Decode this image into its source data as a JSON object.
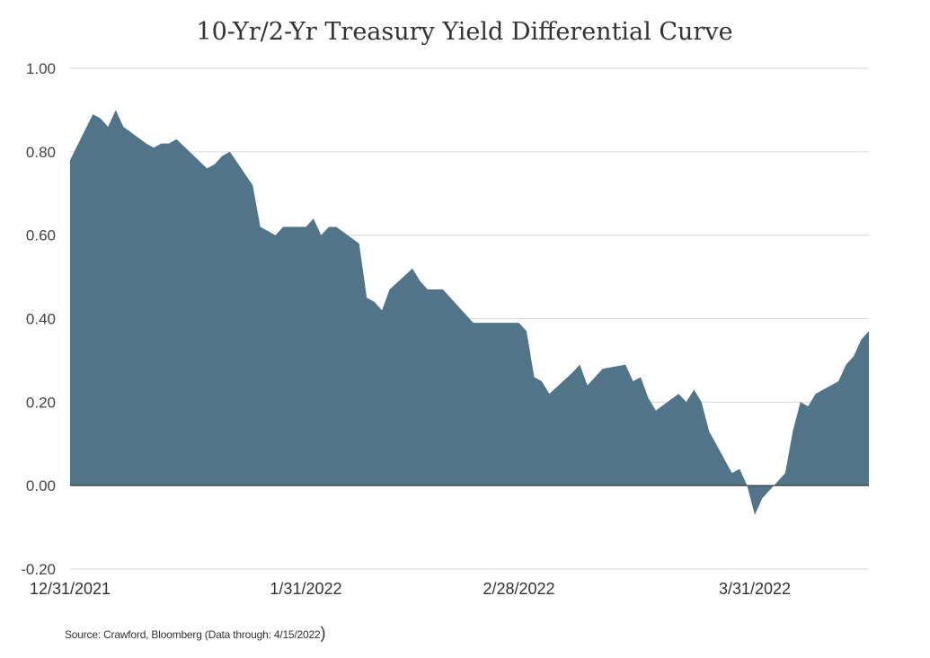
{
  "chart_data": {
    "type": "area",
    "title": "10-Yr/2-Yr Treasury Yield Differential Curve",
    "ylim": [
      -0.2,
      1.0
    ],
    "yticks": [
      "1.00",
      "0.80",
      "0.60",
      "0.40",
      "0.20",
      "0.00",
      "-0.20"
    ],
    "xticks": [
      "12/31/2021",
      "1/31/2022",
      "2/28/2022",
      "3/31/2022"
    ],
    "grid": true,
    "series_colors": {
      "positive": "#517488",
      "negative": "#ff0000"
    },
    "x": [
      "2021-12-31",
      "2022-01-03",
      "2022-01-04",
      "2022-01-05",
      "2022-01-06",
      "2022-01-07",
      "2022-01-10",
      "2022-01-11",
      "2022-01-12",
      "2022-01-13",
      "2022-01-14",
      "2022-01-18",
      "2022-01-19",
      "2022-01-20",
      "2022-01-21",
      "2022-01-24",
      "2022-01-25",
      "2022-01-26",
      "2022-01-27",
      "2022-01-28",
      "2022-01-31",
      "2022-02-01",
      "2022-02-02",
      "2022-02-03",
      "2022-02-04",
      "2022-02-07",
      "2022-02-08",
      "2022-02-09",
      "2022-02-10",
      "2022-02-11",
      "2022-02-14",
      "2022-02-15",
      "2022-02-16",
      "2022-02-17",
      "2022-02-18",
      "2022-02-22",
      "2022-02-23",
      "2022-02-24",
      "2022-02-25",
      "2022-02-28",
      "2022-03-01",
      "2022-03-02",
      "2022-03-03",
      "2022-03-04",
      "2022-03-07",
      "2022-03-08",
      "2022-03-09",
      "2022-03-10",
      "2022-03-11",
      "2022-03-14",
      "2022-03-15",
      "2022-03-16",
      "2022-03-17",
      "2022-03-18",
      "2022-03-21",
      "2022-03-22",
      "2022-03-23",
      "2022-03-24",
      "2022-03-25",
      "2022-03-28",
      "2022-03-29",
      "2022-03-30",
      "2022-03-31",
      "2022-04-01",
      "2022-04-04",
      "2022-04-05",
      "2022-04-06",
      "2022-04-07",
      "2022-04-08",
      "2022-04-11",
      "2022-04-12",
      "2022-04-13",
      "2022-04-14",
      "2022-04-15"
    ],
    "values": [
      0.78,
      0.89,
      0.88,
      0.86,
      0.9,
      0.86,
      0.82,
      0.81,
      0.82,
      0.82,
      0.83,
      0.76,
      0.77,
      0.79,
      0.8,
      0.72,
      0.62,
      0.61,
      0.6,
      0.62,
      0.62,
      0.64,
      0.6,
      0.62,
      0.62,
      0.58,
      0.45,
      0.44,
      0.42,
      0.47,
      0.52,
      0.49,
      0.47,
      0.47,
      0.47,
      0.39,
      0.39,
      0.39,
      0.39,
      0.39,
      0.37,
      0.26,
      0.25,
      0.22,
      0.27,
      0.29,
      0.24,
      0.26,
      0.28,
      0.29,
      0.25,
      0.26,
      0.21,
      0.18,
      0.22,
      0.2,
      0.23,
      0.2,
      0.13,
      0.03,
      0.04,
      0.0,
      -0.07,
      -0.03,
      0.03,
      0.13,
      0.2,
      0.19,
      0.22,
      0.25,
      0.29,
      0.31,
      0.35,
      0.37
    ]
  },
  "source_text": "Source: Crawford, Bloomberg (Data through: 4/15/2022",
  "source_paren": ")"
}
